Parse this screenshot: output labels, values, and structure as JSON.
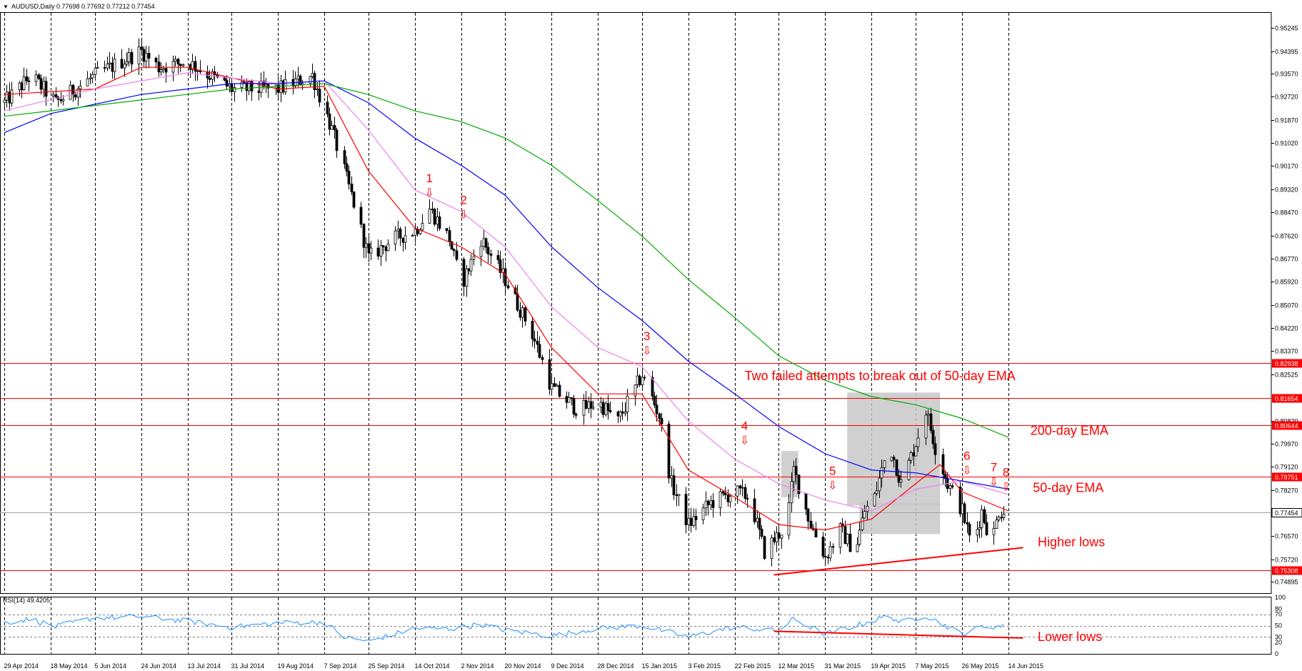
{
  "header": {
    "symbol_info": "AUDUSD,Daily  0.77698 0.77692 0.77212 0.77454",
    "indicator_info": "RSI(14) 49.4205"
  },
  "colors": {
    "bull_candle": "#ffffff",
    "bear_candle": "#000000",
    "ema_fast": "#ff0000",
    "ema_50": "#ee82ee",
    "ema_100": "#0000ff",
    "ema_200": "#00aa00",
    "resistance_lines": "#ff0000",
    "rsi_line": "#1e90ff",
    "annotations": "#ff0000",
    "consolidation_box": "#c8c8c8"
  },
  "chart_data": {
    "type": "candlestick",
    "symbol": "AUDUSD",
    "timeframe": "Daily",
    "last_ohlc": {
      "open": 0.77698,
      "high": 0.77692,
      "low": 0.77212,
      "close": 0.77454
    },
    "y_ticks": [
      "0.95245",
      "0.94395",
      "0.93570",
      "0.92720",
      "0.91870",
      "0.91020",
      "0.90170",
      "0.89320",
      "0.88470",
      "0.87620",
      "0.86770",
      "0.85920",
      "0.85070",
      "0.84220",
      "0.83370",
      "0.82525",
      "0.80820",
      "0.79970",
      "0.79120",
      "0.78270",
      "0.76570",
      "0.75720",
      "0.74895"
    ],
    "y_range": [
      0.7448,
      0.958
    ],
    "x_ticks": [
      "29 Apr 2014",
      "18 May 2014",
      "5 Jun 2014",
      "24 Jun 2014",
      "13 Jul 2014",
      "31 Jul 2014",
      "19 Aug 2014",
      "7 Sep 2014",
      "25 Sep 2014",
      "14 Oct 2014",
      "2 Nov 2014",
      "20 Nov 2014",
      "9 Dec 2014",
      "28 Dec 2014",
      "15 Jan 2015",
      "3 Feb 2015",
      "22 Feb 2015",
      "12 Mar 2015",
      "31 Mar 2015",
      "19 Apr 2015",
      "7 May 2015",
      "26 May 2015",
      "14 Jun 2015"
    ],
    "x_range": [
      "2014-04-29",
      "2015-06-14"
    ],
    "grid": true,
    "price_path": [
      [
        "2014-04-29",
        0.925
      ],
      [
        "2014-05-10",
        0.935
      ],
      [
        "2014-05-20",
        0.925
      ],
      [
        "2014-06-05",
        0.935
      ],
      [
        "2014-06-24",
        0.944
      ],
      [
        "2014-07-01",
        0.938
      ],
      [
        "2014-07-13",
        0.94
      ],
      [
        "2014-07-31",
        0.93
      ],
      [
        "2014-08-19",
        0.93
      ],
      [
        "2014-09-02",
        0.935
      ],
      [
        "2014-09-10",
        0.915
      ],
      [
        "2014-09-20",
        0.885
      ],
      [
        "2014-09-25",
        0.868
      ],
      [
        "2014-10-05",
        0.875
      ],
      [
        "2014-10-14",
        0.878
      ],
      [
        "2014-10-20",
        0.886
      ],
      [
        "2014-10-28",
        0.875
      ],
      [
        "2014-11-02",
        0.858
      ],
      [
        "2014-11-10",
        0.875
      ],
      [
        "2014-11-20",
        0.86
      ],
      [
        "2014-12-01",
        0.84
      ],
      [
        "2014-12-09",
        0.82
      ],
      [
        "2014-12-20",
        0.812
      ],
      [
        "2014-12-28",
        0.815
      ],
      [
        "2015-01-05",
        0.808
      ],
      [
        "2015-01-15",
        0.825
      ],
      [
        "2015-01-22",
        0.81
      ],
      [
        "2015-01-27",
        0.785
      ],
      [
        "2015-02-03",
        0.77
      ],
      [
        "2015-02-12",
        0.778
      ],
      [
        "2015-02-22",
        0.782
      ],
      [
        "2015-02-28",
        0.78
      ],
      [
        "2015-03-06",
        0.76
      ],
      [
        "2015-03-15",
        0.77
      ],
      [
        "2015-03-18",
        0.79
      ],
      [
        "2015-03-25",
        0.77
      ],
      [
        "2015-03-31",
        0.758
      ],
      [
        "2015-04-06",
        0.768
      ],
      [
        "2015-04-12",
        0.76
      ],
      [
        "2015-04-16",
        0.775
      ],
      [
        "2015-04-20",
        0.78
      ],
      [
        "2015-04-26",
        0.8
      ],
      [
        "2015-05-01",
        0.785
      ],
      [
        "2015-05-07",
        0.8
      ],
      [
        "2015-05-11",
        0.812
      ],
      [
        "2015-05-16",
        0.795
      ],
      [
        "2015-05-20",
        0.785
      ],
      [
        "2015-05-26",
        0.775
      ],
      [
        "2015-05-30",
        0.762
      ],
      [
        "2015-06-03",
        0.775
      ],
      [
        "2015-06-07",
        0.763
      ],
      [
        "2015-06-10",
        0.775
      ],
      [
        "2015-06-14",
        0.7745
      ]
    ],
    "moving_averages": [
      {
        "name": "ema_fast",
        "color": "#ff0000",
        "points": [
          [
            "2014-04-29",
            0.928
          ],
          [
            "2014-06-05",
            0.93
          ],
          [
            "2014-06-24",
            0.938
          ],
          [
            "2014-07-13",
            0.938
          ],
          [
            "2014-08-19",
            0.93
          ],
          [
            "2014-09-07",
            0.931
          ],
          [
            "2014-09-25",
            0.9
          ],
          [
            "2014-10-14",
            0.879
          ],
          [
            "2014-11-02",
            0.872
          ],
          [
            "2014-11-20",
            0.862
          ],
          [
            "2014-12-09",
            0.835
          ],
          [
            "2014-12-28",
            0.818
          ],
          [
            "2015-01-15",
            0.818
          ],
          [
            "2015-02-03",
            0.79
          ],
          [
            "2015-02-22",
            0.78
          ],
          [
            "2015-03-12",
            0.77
          ],
          [
            "2015-03-31",
            0.768
          ],
          [
            "2015-04-19",
            0.772
          ],
          [
            "2015-05-07",
            0.785
          ],
          [
            "2015-05-17",
            0.792
          ],
          [
            "2015-05-26",
            0.782
          ],
          [
            "2015-06-14",
            0.775
          ]
        ]
      },
      {
        "name": "50-day EMA",
        "color": "#ee82ee",
        "points": [
          [
            "2014-04-29",
            0.922
          ],
          [
            "2014-06-05",
            0.93
          ],
          [
            "2014-07-13",
            0.936
          ],
          [
            "2014-08-19",
            0.932
          ],
          [
            "2014-09-07",
            0.933
          ],
          [
            "2014-09-25",
            0.915
          ],
          [
            "2014-10-14",
            0.893
          ],
          [
            "2014-11-02",
            0.885
          ],
          [
            "2014-11-20",
            0.872
          ],
          [
            "2014-12-09",
            0.85
          ],
          [
            "2014-12-28",
            0.835
          ],
          [
            "2015-01-15",
            0.828
          ],
          [
            "2015-02-03",
            0.808
          ],
          [
            "2015-02-22",
            0.794
          ],
          [
            "2015-03-12",
            0.785
          ],
          [
            "2015-03-31",
            0.779
          ],
          [
            "2015-04-19",
            0.775
          ],
          [
            "2015-05-07",
            0.783
          ],
          [
            "2015-05-26",
            0.786
          ],
          [
            "2015-06-14",
            0.781
          ]
        ]
      },
      {
        "name": "ema_100",
        "color": "#0000ff",
        "points": [
          [
            "2014-04-29",
            0.914
          ],
          [
            "2014-05-18",
            0.921
          ],
          [
            "2014-06-24",
            0.928
          ],
          [
            "2014-07-31",
            0.932
          ],
          [
            "2014-08-19",
            0.932
          ],
          [
            "2014-09-07",
            0.933
          ],
          [
            "2014-09-25",
            0.925
          ],
          [
            "2014-10-14",
            0.912
          ],
          [
            "2014-11-02",
            0.902
          ],
          [
            "2014-11-20",
            0.891
          ],
          [
            "2014-12-09",
            0.872
          ],
          [
            "2014-12-28",
            0.857
          ],
          [
            "2015-01-15",
            0.845
          ],
          [
            "2015-02-03",
            0.83
          ],
          [
            "2015-02-22",
            0.818
          ],
          [
            "2015-03-12",
            0.806
          ],
          [
            "2015-03-31",
            0.796
          ],
          [
            "2015-04-19",
            0.79
          ],
          [
            "2015-05-07",
            0.789
          ],
          [
            "2015-05-26",
            0.786
          ],
          [
            "2015-06-14",
            0.783
          ]
        ]
      },
      {
        "name": "200-day EMA",
        "color": "#00aa00",
        "points": [
          [
            "2014-04-29",
            0.92
          ],
          [
            "2014-05-18",
            0.922
          ],
          [
            "2014-06-24",
            0.926
          ],
          [
            "2014-07-31",
            0.93
          ],
          [
            "2014-08-19",
            0.931
          ],
          [
            "2014-09-07",
            0.932
          ],
          [
            "2014-09-25",
            0.928
          ],
          [
            "2014-10-14",
            0.922
          ],
          [
            "2014-11-02",
            0.918
          ],
          [
            "2014-11-20",
            0.912
          ],
          [
            "2014-12-09",
            0.902
          ],
          [
            "2014-12-28",
            0.889
          ],
          [
            "2015-01-15",
            0.876
          ],
          [
            "2015-02-03",
            0.86
          ],
          [
            "2015-02-22",
            0.846
          ],
          [
            "2015-03-12",
            0.832
          ],
          [
            "2015-03-31",
            0.823
          ],
          [
            "2015-04-19",
            0.817
          ],
          [
            "2015-05-07",
            0.814
          ],
          [
            "2015-05-26",
            0.809
          ],
          [
            "2015-06-14",
            0.802
          ]
        ]
      }
    ],
    "horizontal_levels": [
      "0.82938",
      "0.81654",
      "0.80644",
      "0.78751",
      "0.75308"
    ],
    "current_price_label": "0.77454",
    "consolidation_boxes": [
      {
        "x": [
          "2015-03-13",
          "2015-03-20"
        ],
        "y": [
          0.78,
          0.797
        ]
      },
      {
        "x": [
          "2015-04-09",
          "2015-05-17"
        ],
        "y": [
          0.777,
          0.8185
        ]
      },
      {
        "x": [
          "2015-04-14",
          "2015-05-17"
        ],
        "y": [
          0.7665,
          0.778
        ]
      }
    ],
    "annotations": {
      "numbered_arrows": [
        {
          "label": "1",
          "date": "2014-10-20",
          "price": 0.89
        },
        {
          "label": "2",
          "date": "2014-11-03",
          "price": 0.882
        },
        {
          "label": "3",
          "date": "2015-01-17",
          "price": 0.832
        },
        {
          "label": "4",
          "date": "2015-02-26",
          "price": 0.799
        },
        {
          "label": "5",
          "date": "2015-04-03",
          "price": 0.7825
        },
        {
          "label": "6",
          "date": "2015-05-28",
          "price": 0.788
        },
        {
          "label": "7",
          "date": "2015-06-08",
          "price": 0.7838
        },
        {
          "label": "8",
          "date": "2015-06-13",
          "price": 0.782
        }
      ],
      "text_labels": [
        {
          "text": "Two failed attempts to break out of 50-day EMA",
          "date": "2015-02-26",
          "price": 0.823,
          "size": 18
        },
        {
          "text": "200-day EMA",
          "date": "2015-06-23",
          "price": 0.803,
          "size": 18
        },
        {
          "text": "50-day EMA",
          "date": "2015-06-24",
          "price": 0.782,
          "size": 18
        },
        {
          "text": "Higher lows",
          "date": "2015-06-26",
          "price": 0.762,
          "size": 18
        }
      ],
      "trendline": {
        "from": [
          "2015-03-10",
          0.7515
        ],
        "to": [
          "2015-06-20",
          0.7615
        ]
      }
    },
    "rsi": {
      "label": "RSI(14) 49.4205",
      "value": 49.4205,
      "y_ticks": [
        "100",
        "70",
        "50",
        "30",
        "0"
      ],
      "y_ticks_secondary": [
        "80",
        "20"
      ],
      "range": [
        0,
        100
      ],
      "path": [
        [
          "2014-04-29",
          55
        ],
        [
          "2014-05-10",
          62
        ],
        [
          "2014-05-20",
          48
        ],
        [
          "2014-06-05",
          64
        ],
        [
          "2014-06-24",
          66
        ],
        [
          "2014-07-13",
          58
        ],
        [
          "2014-07-31",
          47
        ],
        [
          "2014-08-19",
          55
        ],
        [
          "2014-09-07",
          56
        ],
        [
          "2014-09-15",
          30
        ],
        [
          "2014-09-25",
          22
        ],
        [
          "2014-10-14",
          45
        ],
        [
          "2014-10-28",
          44
        ],
        [
          "2014-11-10",
          52
        ],
        [
          "2014-11-20",
          42
        ],
        [
          "2014-12-09",
          32
        ],
        [
          "2014-12-28",
          45
        ],
        [
          "2015-01-15",
          50
        ],
        [
          "2015-02-03",
          30
        ],
        [
          "2015-02-22",
          48
        ],
        [
          "2015-03-12",
          40
        ],
        [
          "2015-03-18",
          62
        ],
        [
          "2015-03-31",
          35
        ],
        [
          "2015-04-19",
          58
        ],
        [
          "2015-04-26",
          68
        ],
        [
          "2015-05-01",
          55
        ],
        [
          "2015-05-11",
          68
        ],
        [
          "2015-05-26",
          35
        ],
        [
          "2015-06-03",
          48
        ],
        [
          "2015-06-14",
          49.4
        ]
      ],
      "text_label": {
        "text": "Lower lows",
        "date": "2015-06-26",
        "value": 28
      },
      "trendline": {
        "from": [
          "2015-03-10",
          40
        ],
        "to": [
          "2015-06-20",
          28
        ]
      }
    }
  }
}
